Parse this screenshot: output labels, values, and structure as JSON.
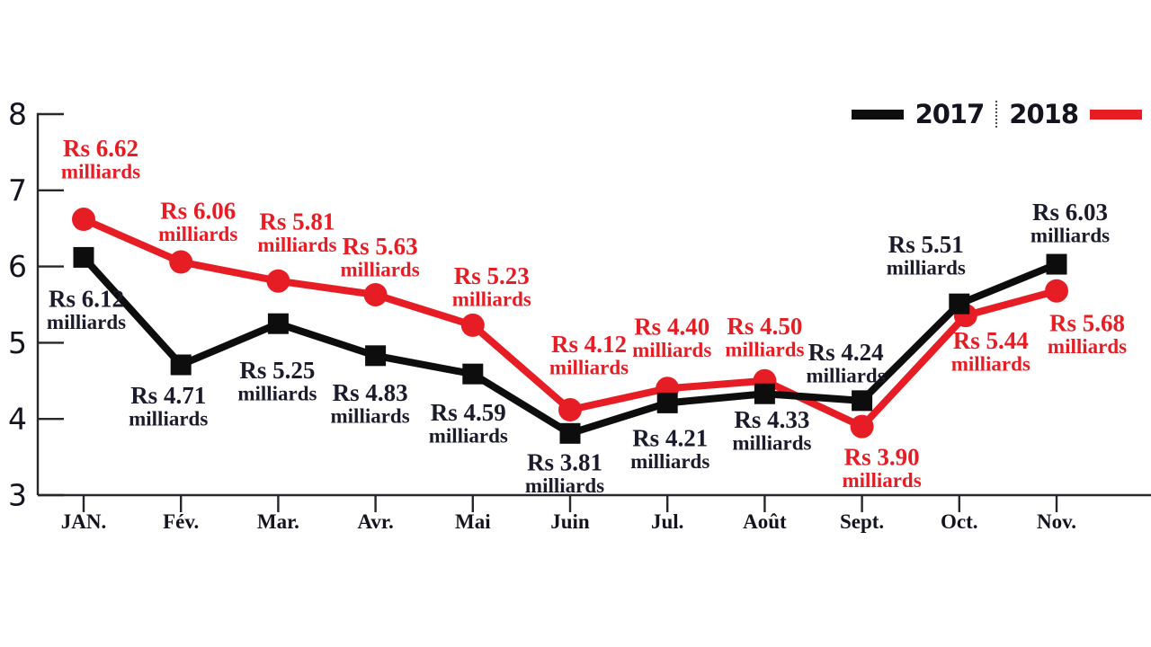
{
  "chart_data": {
    "type": "line",
    "categories": [
      "JAN.",
      "Fév.",
      "Mar.",
      "Avr.",
      "Mai",
      "Juin",
      "Jul.",
      "Août",
      "Sept.",
      "Oct.",
      "Nov."
    ],
    "xlabel": "",
    "ylabel": "",
    "ylim": [
      3,
      8
    ],
    "y_ticks": [
      3,
      4,
      5,
      6,
      7,
      8
    ],
    "grid": false,
    "unit_word": "milliards",
    "currency_prefix": "Rs",
    "series": [
      {
        "name": "2017",
        "color": "#0d0d0d",
        "marker": "square",
        "values": [
          6.12,
          4.71,
          5.25,
          4.83,
          4.59,
          3.81,
          4.21,
          4.33,
          4.24,
          5.51,
          6.03
        ],
        "point_labels": [
          "Rs 6.12",
          "Rs 4.71",
          "Rs 5.25",
          "Rs 4.83",
          "Rs 4.59",
          "Rs 3.81",
          "Rs 4.21",
          "Rs 4.33",
          "Rs 4.24",
          "Rs 5.51",
          "Rs 6.03"
        ],
        "label_side": [
          "below",
          "below",
          "below",
          "below",
          "below",
          "below",
          "below",
          "below",
          "above",
          "above",
          "above"
        ]
      },
      {
        "name": "2018",
        "color": "#e71d25",
        "marker": "circle",
        "values": [
          6.62,
          6.06,
          5.81,
          5.63,
          5.23,
          4.12,
          4.4,
          4.5,
          3.9,
          5.44,
          5.68
        ],
        "point_labels": [
          "Rs 6.62",
          "Rs 6.06",
          "Rs 5.81",
          "Rs 5.63",
          "Rs 5.23",
          "Rs 4.12",
          "Rs 4.40",
          "Rs 4.50",
          "Rs 3.90",
          "Rs 5.44",
          "Rs 5.68"
        ],
        "label_side": [
          "above",
          "above",
          "above",
          "above",
          "above",
          "above",
          "above",
          "above",
          "below",
          "below",
          "below"
        ]
      }
    ],
    "legend": {
      "position": "top-right",
      "items": [
        {
          "label": "2017",
          "color": "#0d0d0d"
        },
        {
          "label": "2018",
          "color": "#e71d25"
        }
      ]
    },
    "text_colors": {
      "black_labels": "#1b1b2c",
      "red_labels": "#e71d25",
      "axis_text": "#14141f"
    }
  }
}
